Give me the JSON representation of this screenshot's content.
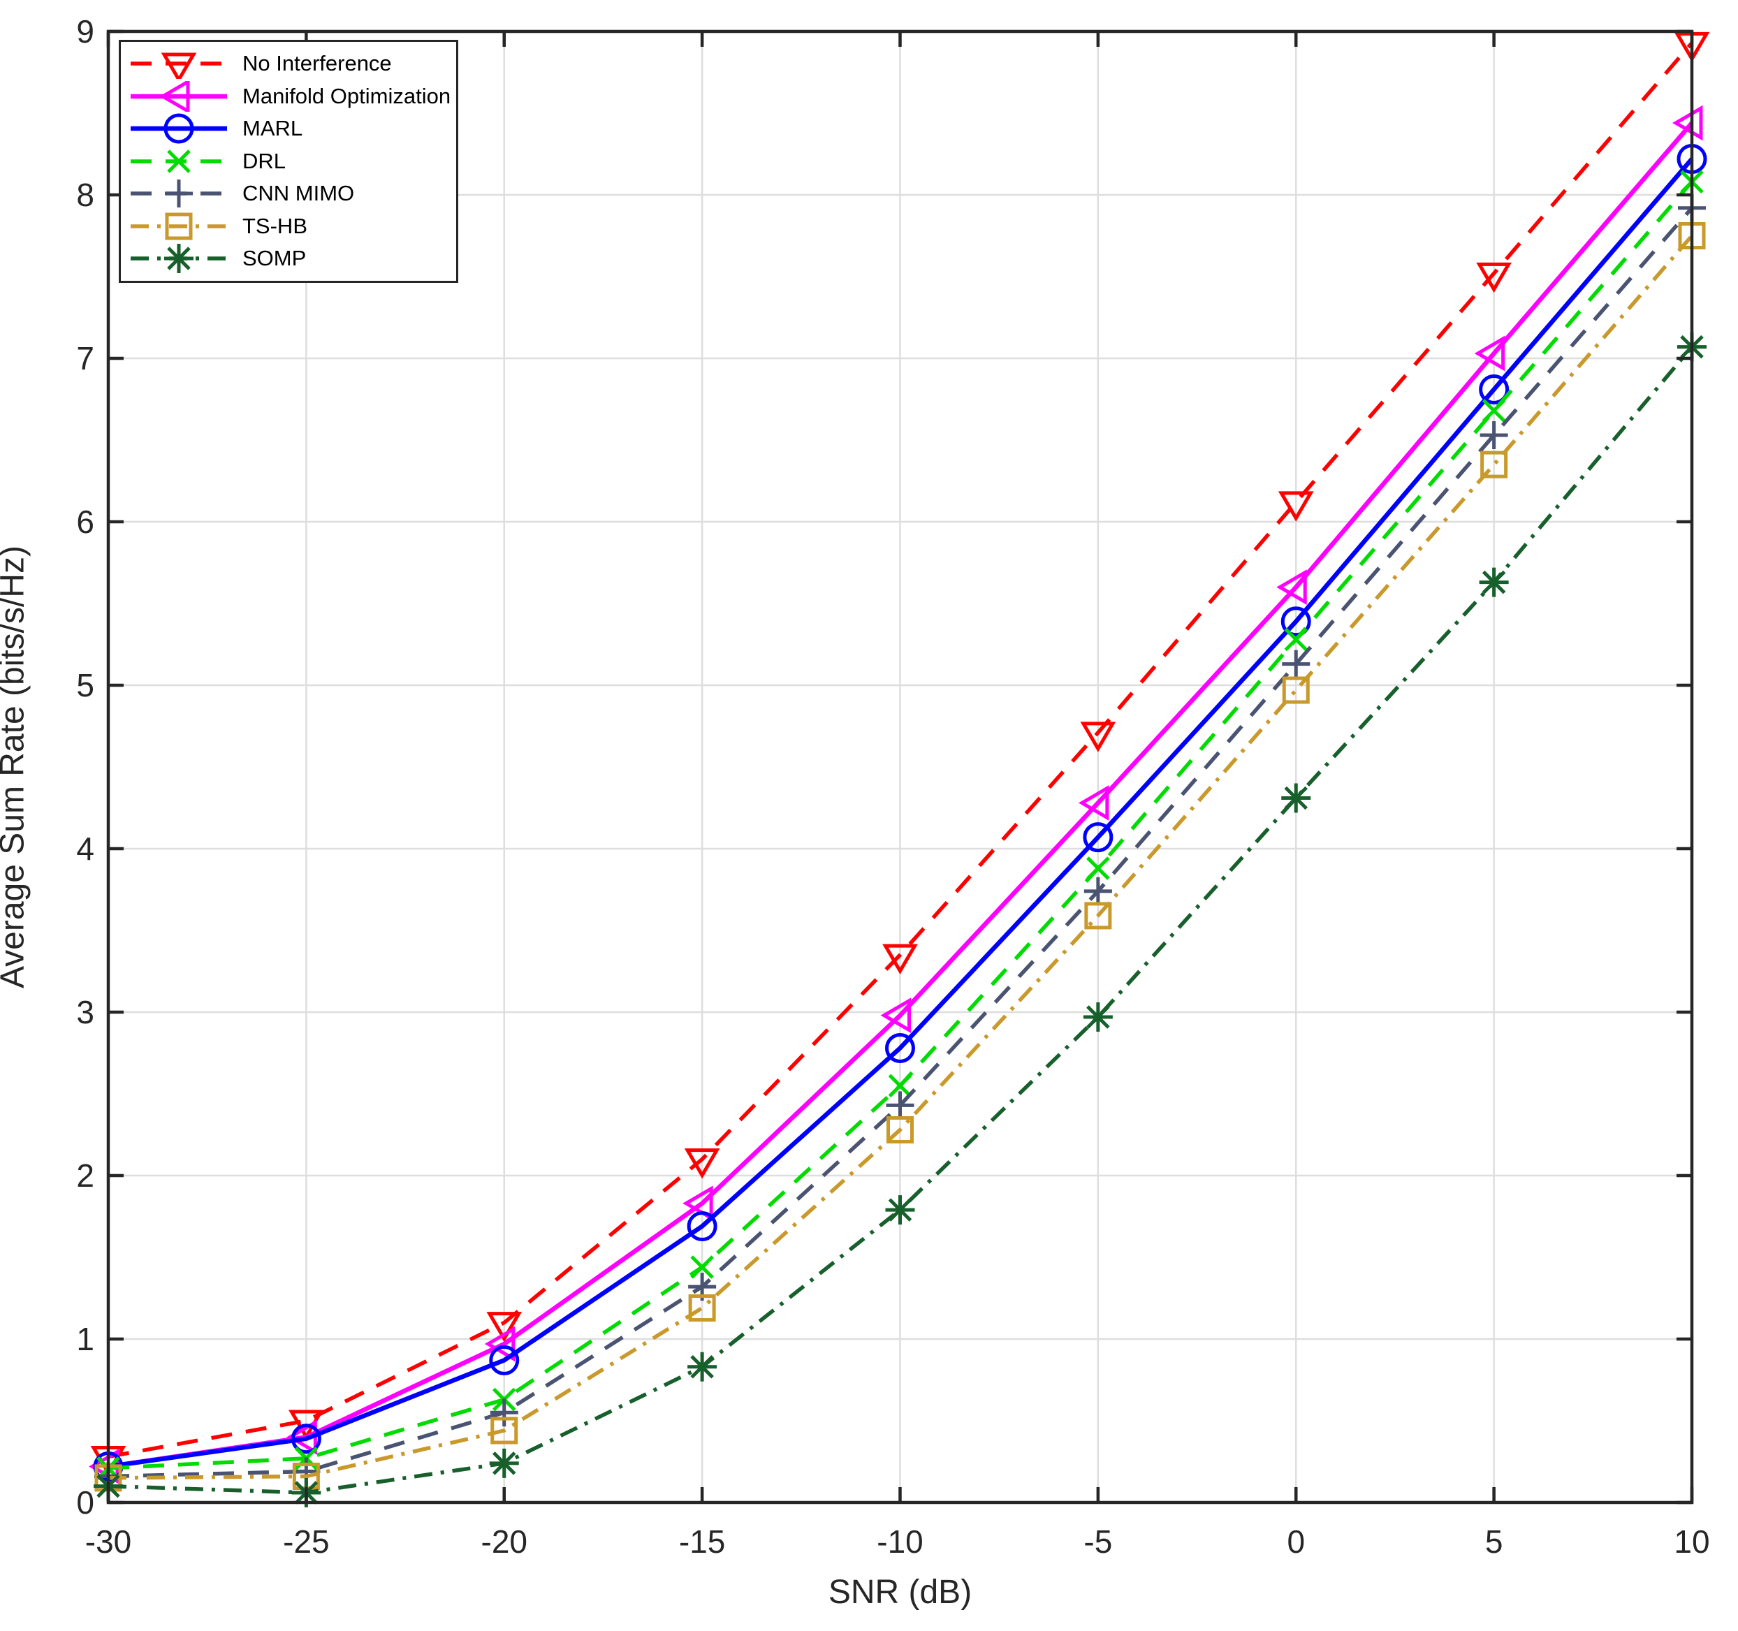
{
  "chart_data": {
    "type": "line",
    "x": [
      -30,
      -25,
      -20,
      -15,
      -10,
      -5,
      0,
      5,
      10
    ],
    "xlabel": "SNR (dB)",
    "ylabel": "Average Sum Rate (bits/s/Hz)",
    "xlim": [
      -30,
      10
    ],
    "ylim": [
      0,
      9
    ],
    "xticks": [
      -30,
      -25,
      -20,
      -15,
      -10,
      -5,
      0,
      5,
      10
    ],
    "yticks": [
      0,
      1,
      2,
      3,
      4,
      5,
      6,
      7,
      8,
      9
    ],
    "grid": true,
    "legend_position": "top-left",
    "series": [
      {
        "name": "No Interference",
        "color": "#FF0000",
        "line_style": "dashed",
        "marker": "triangle-down",
        "values": [
          0.28,
          0.5,
          1.1,
          2.1,
          3.35,
          4.71,
          6.12,
          7.52,
          8.93
        ]
      },
      {
        "name": "Manifold Optimization",
        "color": "#FF00FF",
        "line_style": "solid",
        "marker": "triangle-left",
        "values": [
          0.22,
          0.4,
          0.97,
          1.83,
          2.98,
          4.28,
          5.6,
          7.03,
          8.44
        ]
      },
      {
        "name": "MARL",
        "color": "#0000FF",
        "line_style": "solid",
        "marker": "circle",
        "values": [
          0.22,
          0.39,
          0.87,
          1.69,
          2.78,
          4.07,
          5.39,
          6.81,
          8.22
        ]
      },
      {
        "name": "DRL",
        "color": "#00DB00",
        "line_style": "dashed",
        "marker": "x",
        "values": [
          0.21,
          0.27,
          0.63,
          1.44,
          2.55,
          3.88,
          5.28,
          6.68,
          8.08
        ]
      },
      {
        "name": "CNN MIMO",
        "color": "#4A5472",
        "line_style": "dashed",
        "marker": "plus",
        "values": [
          0.16,
          0.19,
          0.55,
          1.32,
          2.43,
          3.74,
          5.13,
          6.53,
          7.92
        ]
      },
      {
        "name": "TS-HB",
        "color": "#C9992B",
        "line_style": "dashdot",
        "marker": "square",
        "values": [
          0.15,
          0.16,
          0.44,
          1.19,
          2.28,
          3.59,
          4.97,
          6.35,
          7.75
        ]
      },
      {
        "name": "SOMP",
        "color": "#17602C",
        "line_style": "dashdot",
        "marker": "asterisk",
        "values": [
          0.1,
          0.06,
          0.24,
          0.83,
          1.79,
          2.97,
          4.31,
          5.63,
          7.07
        ]
      }
    ]
  }
}
